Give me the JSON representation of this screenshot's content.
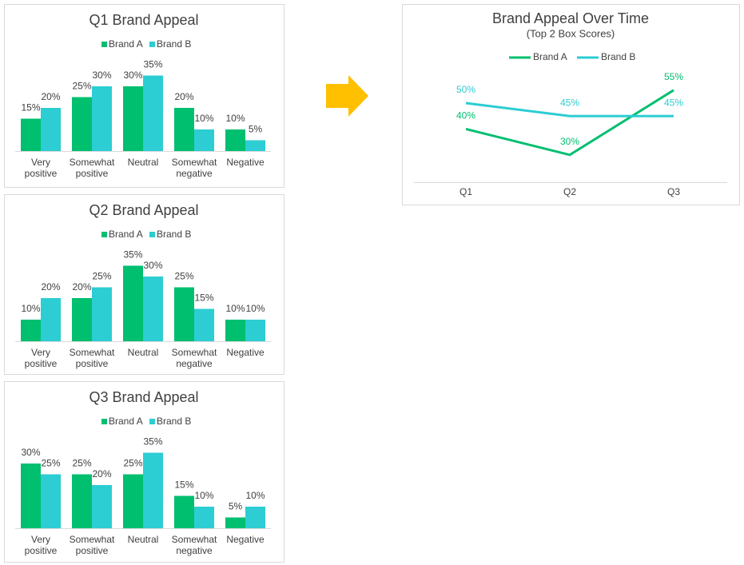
{
  "chart_data": [
    {
      "type": "bar",
      "title": "Q1 Brand Appeal",
      "categories": [
        "Very positive",
        "Somewhat positive",
        "Neutral",
        "Somewhat negative",
        "Negative"
      ],
      "series": [
        {
          "name": "Brand A",
          "color": "#00bf6f",
          "values": [
            15,
            25,
            30,
            20,
            10
          ],
          "value_labels": [
            "15%",
            "25%",
            "30%",
            "20%",
            "10%"
          ]
        },
        {
          "name": "Brand B",
          "color": "#2ccdd3",
          "values": [
            20,
            30,
            35,
            10,
            5
          ],
          "value_labels": [
            "20%",
            "30%",
            "35%",
            "10%",
            "5%"
          ]
        }
      ]
    },
    {
      "type": "bar",
      "title": "Q2 Brand Appeal",
      "categories": [
        "Very positive",
        "Somewhat positive",
        "Neutral",
        "Somewhat negative",
        "Negative"
      ],
      "series": [
        {
          "name": "Brand A",
          "color": "#00bf6f",
          "values": [
            10,
            20,
            35,
            25,
            10
          ],
          "value_labels": [
            "10%",
            "20%",
            "35%",
            "25%",
            "10%"
          ]
        },
        {
          "name": "Brand B",
          "color": "#2ccdd3",
          "values": [
            20,
            25,
            30,
            15,
            10
          ],
          "value_labels": [
            "20%",
            "25%",
            "30%",
            "15%",
            "10%"
          ]
        }
      ]
    },
    {
      "type": "bar",
      "title": "Q3 Brand Appeal",
      "categories": [
        "Very positive",
        "Somewhat positive",
        "Neutral",
        "Somewhat negative",
        "Negative"
      ],
      "series": [
        {
          "name": "Brand A",
          "color": "#00bf6f",
          "values": [
            30,
            25,
            25,
            15,
            5
          ],
          "value_labels": [
            "30%",
            "25%",
            "25%",
            "15%",
            "5%"
          ]
        },
        {
          "name": "Brand B",
          "color": "#2ccdd3",
          "values": [
            25,
            20,
            35,
            10,
            10
          ],
          "value_labels": [
            "25%",
            "20%",
            "35%",
            "10%",
            "10%"
          ]
        }
      ]
    },
    {
      "type": "line",
      "title": "Brand Appeal Over Time",
      "subtitle": "(Top 2 Box Scores)",
      "categories": [
        "Q1",
        "Q2",
        "Q3"
      ],
      "series": [
        {
          "name": "Brand A",
          "color": "#00bf6f",
          "values": [
            40,
            30,
            55
          ],
          "value_labels": [
            "40%",
            "30%",
            "55%"
          ]
        },
        {
          "name": "Brand B",
          "color": "#2ccdd3",
          "values": [
            50,
            45,
            45
          ],
          "value_labels": [
            "50%",
            "45%",
            "45%"
          ]
        }
      ]
    }
  ]
}
